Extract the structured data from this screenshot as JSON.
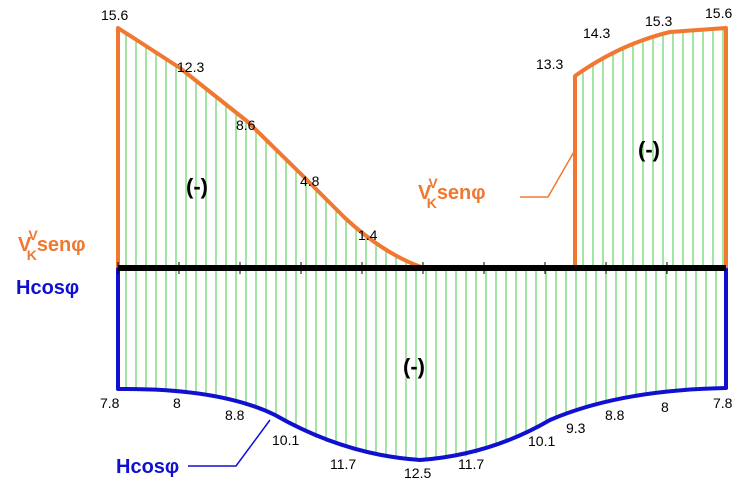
{
  "colors": {
    "upper_curve": "#f07830",
    "lower_curve": "#1010d0",
    "hatch": "#44cc44",
    "axis": "#000000"
  },
  "labels": {
    "upper_left": {
      "main": "V",
      "sup": "V",
      "sub": "K",
      "tail": "senφ"
    },
    "upper_callout": {
      "main": "V",
      "sup": "V",
      "sub": "K",
      "tail": "senφ"
    },
    "lower_left": {
      "text": "Hcosφ"
    },
    "lower_callout": {
      "text": "Hcosφ"
    }
  },
  "signs": {
    "upper_left": "(-)",
    "upper_right": "(-)",
    "lower": "(-)"
  },
  "upper_left_values": [
    {
      "label": "15.6"
    },
    {
      "label": "12.3"
    },
    {
      "label": "8.6"
    },
    {
      "label": "4.8"
    },
    {
      "label": "1.4"
    }
  ],
  "upper_right_values": [
    {
      "label": "13.3"
    },
    {
      "label": "14.3"
    },
    {
      "label": "15.3"
    },
    {
      "label": "15.6"
    }
  ],
  "lower_values": [
    {
      "label": "7.8"
    },
    {
      "label": "8"
    },
    {
      "label": "8.8"
    },
    {
      "label": "10.1"
    },
    {
      "label": "11.7"
    },
    {
      "label": "12.5"
    },
    {
      "label": "11.7"
    },
    {
      "label": "10.1"
    },
    {
      "label": "9.3"
    },
    {
      "label": "8.8"
    },
    {
      "label": "8"
    },
    {
      "label": "7.8"
    }
  ]
}
